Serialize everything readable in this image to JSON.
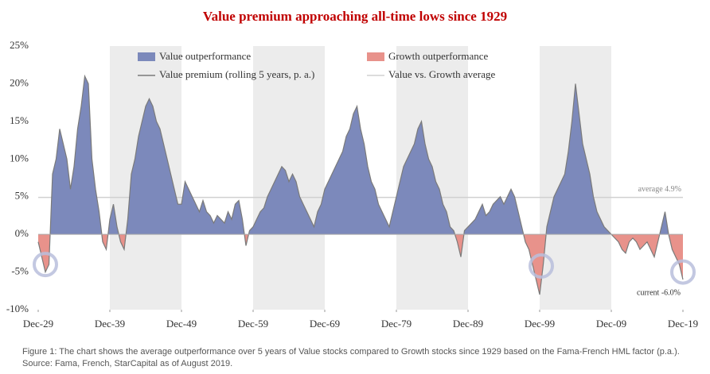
{
  "chart_data": {
    "type": "area",
    "title": "Value premium approaching all-time lows since 1929",
    "caption": "Figure 1: The chart shows the average outperformance over 5 years of Value stocks compared to Growth stocks since 1929 based on the Fama-French HML factor (p.a.). Source: Fama, French, StarCapital as of August 2019.",
    "x": [
      "Dec-29",
      "Jun-30",
      "Dec-30",
      "Jun-31",
      "Dec-31",
      "Jun-32",
      "Dec-32",
      "Jun-33",
      "Dec-33",
      "Jun-34",
      "Dec-34",
      "Jun-35",
      "Dec-35",
      "Jun-36",
      "Dec-36",
      "Jun-37",
      "Dec-37",
      "Jun-38",
      "Dec-38",
      "Jun-39",
      "Dec-39",
      "Jun-40",
      "Dec-40",
      "Jun-41",
      "Dec-41",
      "Jun-42",
      "Dec-42",
      "Jun-43",
      "Dec-43",
      "Jun-44",
      "Dec-44",
      "Jun-45",
      "Dec-45",
      "Jun-46",
      "Dec-46",
      "Jun-47",
      "Dec-47",
      "Jun-48",
      "Dec-48",
      "Jun-49",
      "Dec-49",
      "Jun-50",
      "Dec-50",
      "Jun-51",
      "Dec-51",
      "Jun-52",
      "Dec-52",
      "Jun-53",
      "Dec-53",
      "Jun-54",
      "Dec-54",
      "Jun-55",
      "Dec-55",
      "Jun-56",
      "Dec-56",
      "Jun-57",
      "Dec-57",
      "Jun-58",
      "Dec-58",
      "Jun-59",
      "Dec-59",
      "Jun-60",
      "Dec-60",
      "Jun-61",
      "Dec-61",
      "Jun-62",
      "Dec-62",
      "Jun-63",
      "Dec-63",
      "Jun-64",
      "Dec-64",
      "Jun-65",
      "Dec-65",
      "Jun-66",
      "Dec-66",
      "Jun-67",
      "Dec-67",
      "Jun-68",
      "Dec-68",
      "Jun-69",
      "Dec-69",
      "Jun-70",
      "Dec-70",
      "Jun-71",
      "Dec-71",
      "Jun-72",
      "Dec-72",
      "Jun-73",
      "Dec-73",
      "Jun-74",
      "Dec-74",
      "Jun-75",
      "Dec-75",
      "Jun-76",
      "Dec-76",
      "Jun-77",
      "Dec-77",
      "Jun-78",
      "Dec-78",
      "Jun-79",
      "Dec-79",
      "Jun-80",
      "Dec-80",
      "Jun-81",
      "Dec-81",
      "Jun-82",
      "Dec-82",
      "Jun-83",
      "Dec-83",
      "Jun-84",
      "Dec-84",
      "Jun-85",
      "Dec-85",
      "Jun-86",
      "Dec-86",
      "Jun-87",
      "Dec-87",
      "Jun-88",
      "Dec-88",
      "Jun-89",
      "Dec-89",
      "Jun-90",
      "Dec-90",
      "Jun-91",
      "Dec-91",
      "Jun-92",
      "Dec-92",
      "Jun-93",
      "Dec-93",
      "Jun-94",
      "Dec-94",
      "Jun-95",
      "Dec-95",
      "Jun-96",
      "Dec-96",
      "Jun-97",
      "Dec-97",
      "Jun-98",
      "Dec-98",
      "Jun-99",
      "Dec-99",
      "Jun-00",
      "Dec-00",
      "Jun-01",
      "Dec-01",
      "Jun-02",
      "Dec-02",
      "Jun-03",
      "Dec-03",
      "Jun-04",
      "Dec-04",
      "Jun-05",
      "Dec-05",
      "Jun-06",
      "Dec-06",
      "Jun-07",
      "Dec-07",
      "Jun-08",
      "Dec-08",
      "Jun-09",
      "Dec-09",
      "Jun-10",
      "Dec-10",
      "Jun-11",
      "Dec-11",
      "Jun-12",
      "Dec-12",
      "Jun-13",
      "Dec-13",
      "Jun-14",
      "Dec-14",
      "Jun-15",
      "Dec-15",
      "Jun-16",
      "Dec-16",
      "Jun-17",
      "Dec-17",
      "Jun-18",
      "Dec-18",
      "Jun-19",
      "Dec-19"
    ],
    "series": [
      {
        "name": "Value premium (rolling 5 years, p. a.)",
        "color": "#7a7a7a",
        "values": [
          -1,
          -3,
          -5,
          -4,
          8,
          10,
          14,
          12,
          10,
          6,
          9,
          14,
          17,
          21,
          20,
          10,
          6,
          3,
          -1,
          -2,
          2,
          4,
          1,
          -1,
          -2,
          2,
          8,
          10,
          13,
          15,
          17,
          18,
          17,
          15,
          14,
          12,
          10,
          8,
          6,
          4,
          4,
          7,
          6,
          5,
          4,
          3,
          4.5,
          3,
          2.5,
          1.5,
          2.5,
          2,
          1.5,
          3,
          2,
          4,
          4.5,
          2,
          -1.5,
          0.5,
          1,
          2,
          3,
          3.5,
          5,
          6,
          7,
          8,
          9,
          8.5,
          7,
          8,
          7,
          5,
          4,
          3,
          2,
          1,
          3,
          4,
          6,
          7,
          8,
          9,
          10,
          11,
          13,
          14,
          16,
          17,
          14,
          12,
          9,
          7,
          6,
          4,
          3,
          2,
          1,
          3,
          5,
          7,
          9,
          10,
          11,
          12,
          14,
          15,
          12,
          10,
          9,
          7,
          6,
          4,
          3,
          1,
          0.5,
          -1,
          -3,
          0.5,
          1,
          1.5,
          2,
          3,
          4,
          2.5,
          3,
          4,
          4.5,
          5,
          4,
          5,
          6,
          5,
          3,
          1,
          -1,
          -2,
          -4,
          -6,
          -8,
          -4,
          1,
          3,
          5,
          6,
          7,
          8,
          11,
          15,
          20,
          16,
          12,
          10,
          8,
          5,
          3,
          2,
          1,
          0.5,
          0,
          -0.5,
          -1,
          -2,
          -2.5,
          -1,
          -0.5,
          -1,
          -2,
          -1.5,
          -1,
          -2,
          -3,
          -1,
          1,
          3,
          0,
          -2,
          -3,
          -4,
          -6
        ]
      }
    ],
    "fills": [
      {
        "name": "Value outperformance",
        "color": "#7c89bb"
      },
      {
        "name": "Growth outperformance",
        "color": "#e8928b"
      }
    ],
    "average": {
      "name": "Value vs. Growth average",
      "value": 4.9,
      "label": "average 4.9%",
      "color": "#d0d0d0"
    },
    "current": {
      "value": -6.0,
      "label": "current -6.0%"
    },
    "ylim": [
      -10,
      25
    ],
    "yticks": [
      {
        "value": -10,
        "label": "-10%"
      },
      {
        "value": -5,
        "label": "-5%"
      },
      {
        "value": 0,
        "label": "0%"
      },
      {
        "value": 5,
        "label": "5%"
      },
      {
        "value": 10,
        "label": "10%"
      },
      {
        "value": 15,
        "label": "15%"
      },
      {
        "value": 20,
        "label": "20%"
      },
      {
        "value": 25,
        "label": "25%"
      }
    ],
    "xticks": [
      "Dec-29",
      "Dec-39",
      "Dec-49",
      "Dec-59",
      "Dec-69",
      "Dec-79",
      "Dec-89",
      "Dec-99",
      "Dec-09",
      "Dec-19"
    ]
  }
}
